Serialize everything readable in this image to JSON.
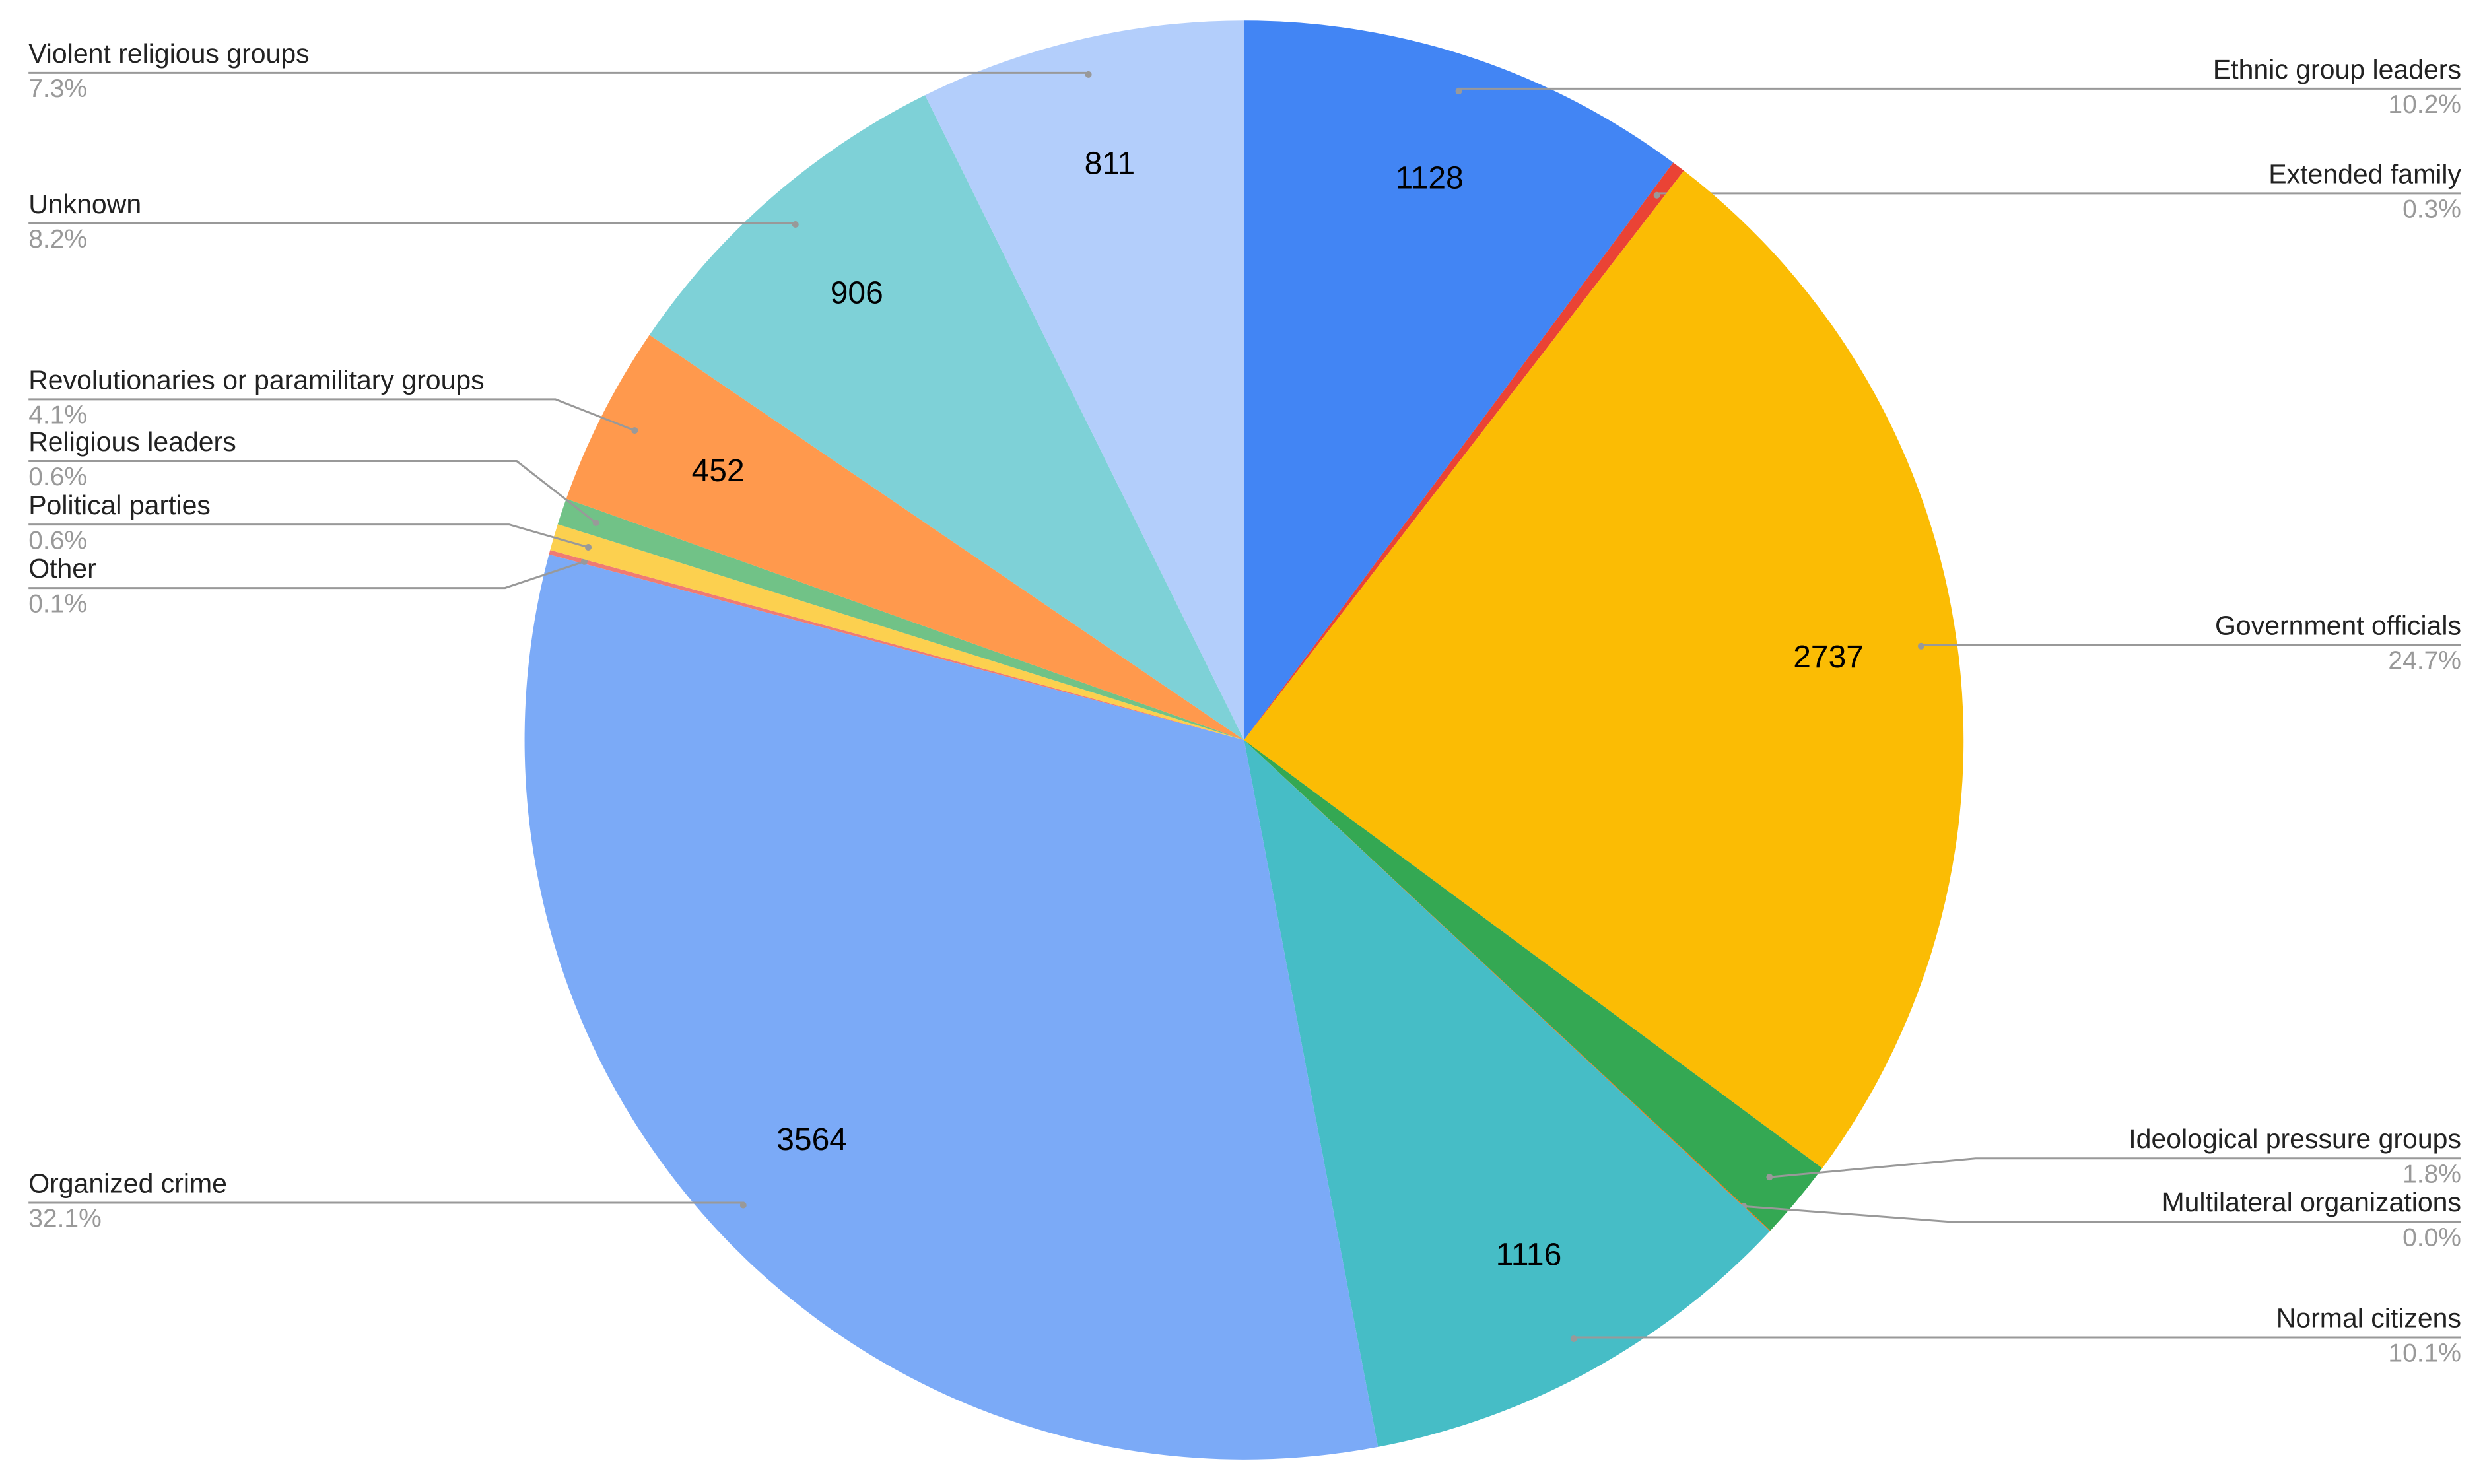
{
  "chart_data": {
    "type": "pie",
    "categories": [
      "Ethnic group leaders",
      "Extended family",
      "Government officials",
      "Ideological pressure groups",
      "Multilateral organizations",
      "Normal citizens",
      "Organized crime",
      "Other",
      "Political parties",
      "Religious leaders",
      "Revolutionaries or paramilitary groups",
      "Unknown",
      "Violent religious groups"
    ],
    "values": [
      1128,
      33,
      2737,
      199,
      2,
      1116,
      3564,
      11,
      66,
      66,
      452,
      906,
      811
    ],
    "percent_labels": [
      "10.2%",
      "0.3%",
      "24.7%",
      "1.8%",
      "0.0%",
      "10.1%",
      "32.1%",
      "0.1%",
      "0.6%",
      "0.6%",
      "4.1%",
      "8.2%",
      "7.3%"
    ],
    "colors": [
      "#4285f4",
      "#ea4335",
      "#fbbc04",
      "#34a853",
      "#ff6d01",
      "#46bdc6",
      "#7baaf7",
      "#f07b72",
      "#fcd04f",
      "#71c287",
      "#ff994d",
      "#7ed1d7",
      "#b3cefb"
    ]
  }
}
